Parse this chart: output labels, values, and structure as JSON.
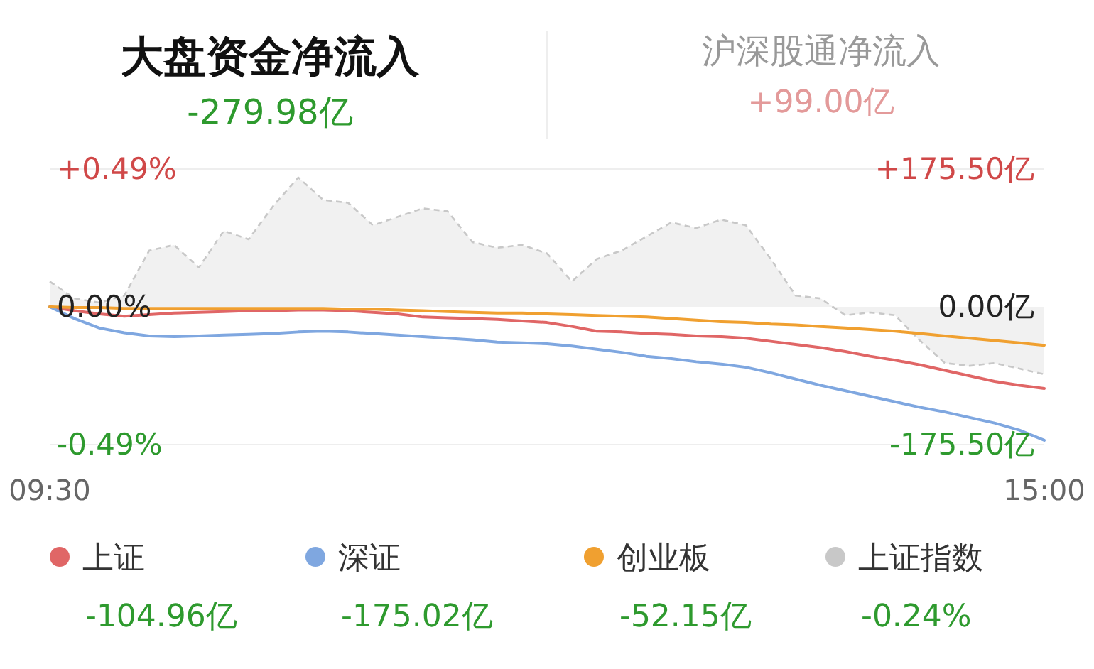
{
  "chart_data": {
    "type": "line",
    "title": "大盘资金净流入",
    "subtitle": "-279.98亿",
    "annotations": [
      "沪深股通净流入",
      "+99.00亿",
      "-104.96亿",
      "-175.02亿",
      "-52.15亿",
      "-0.24%"
    ],
    "categories": [
      "09:30",
      null,
      null,
      null,
      null,
      null,
      null,
      null,
      null,
      null,
      null,
      null,
      null,
      null,
      null,
      null,
      null,
      null,
      null,
      null,
      null,
      null,
      null,
      null,
      null,
      null,
      null,
      null,
      null,
      null,
      null,
      null,
      null,
      null,
      null,
      null,
      null,
      null,
      null,
      null,
      "15:00"
    ],
    "ylim": [
      -0.49,
      0.49
    ],
    "yticks": [
      {
        "value": 0.49,
        "label": "+0.49%"
      },
      {
        "value": 0,
        "label": "0.00%"
      },
      {
        "value": -0.49,
        "label": "-0.49%"
      }
    ],
    "y2lim": [
      -175.5,
      175.5
    ],
    "y2ticks": [
      {
        "value": 175.5,
        "label": "+175.50亿"
      },
      {
        "value": 0,
        "label": "0.00亿"
      },
      {
        "value": -175.5,
        "label": "-175.50亿"
      }
    ],
    "legend": "bottom",
    "series": [
      {
        "name": "上证",
        "color": "#e06666",
        "axis": "y2",
        "values": [
          0,
          -5,
          -9,
          -12,
          -10,
          -8,
          -7,
          -6,
          -5,
          -5,
          -4,
          -4,
          -5,
          -7,
          -9,
          -13,
          -14,
          -15,
          -16,
          -18,
          -20,
          -25,
          -31,
          -32,
          -34,
          -35,
          -37,
          -38,
          -40,
          -44,
          -48,
          -52,
          -57,
          -63,
          -68,
          -74,
          -81,
          -88,
          -95,
          -100,
          -104
        ]
      },
      {
        "name": "深证",
        "color": "#7fa7e0",
        "axis": "y2",
        "values": [
          0,
          -15,
          -27,
          -33,
          -37,
          -38,
          -37,
          -36,
          -35,
          -34,
          -32,
          -31,
          -32,
          -34,
          -36,
          -38,
          -40,
          -42,
          -45,
          -46,
          -47,
          -50,
          -54,
          -58,
          -63,
          -66,
          -70,
          -73,
          -77,
          -84,
          -92,
          -100,
          -107,
          -114,
          -121,
          -128,
          -134,
          -141,
          -148,
          -157,
          -170
        ]
      },
      {
        "name": "创业板",
        "color": "#f0a030",
        "axis": "y2",
        "values": [
          0,
          -1,
          -1,
          -2,
          -2,
          -2,
          -2,
          -2,
          -2,
          -2,
          -2,
          -2,
          -3,
          -3,
          -4,
          -5,
          -6,
          -7,
          -8,
          -8,
          -9,
          -10,
          -11,
          -12,
          -13,
          -15,
          -17,
          -19,
          -20,
          -22,
          -23,
          -25,
          -27,
          -29,
          -31,
          -34,
          -37,
          -40,
          -43,
          -46,
          -49
        ]
      },
      {
        "name": "上证指数",
        "color": "#c8c8c8",
        "type": "area",
        "axis": "y",
        "line_style": "dashed",
        "values": [
          0.09,
          0.03,
          0.015,
          0.04,
          0.2,
          0.22,
          0.14,
          0.27,
          0.24,
          0.36,
          0.46,
          0.38,
          0.37,
          0.29,
          0.32,
          0.35,
          0.34,
          0.23,
          0.21,
          0.22,
          0.19,
          0.09,
          0.17,
          0.2,
          0.25,
          0.3,
          0.28,
          0.31,
          0.29,
          0.17,
          0.04,
          0.03,
          -0.03,
          -0.02,
          -0.03,
          -0.12,
          -0.2,
          -0.21,
          -0.2,
          -0.22,
          -0.24
        ]
      }
    ]
  }
}
